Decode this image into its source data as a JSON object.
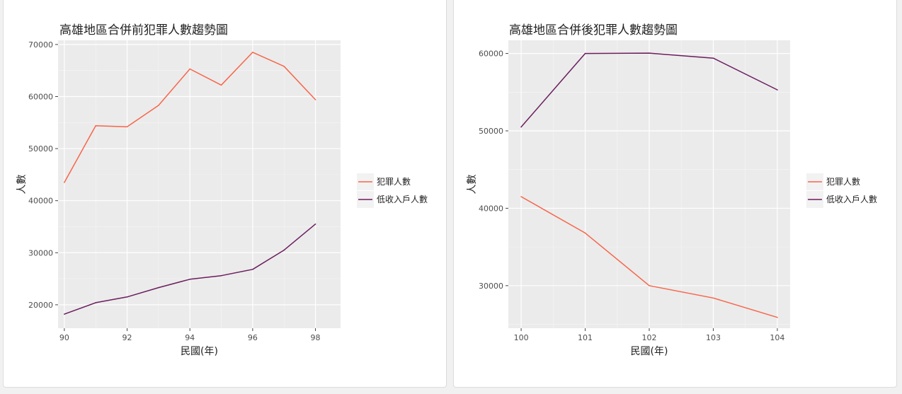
{
  "colors": {
    "panel": "#ebebeb",
    "grid_major": "#ffffff",
    "crime": "#f8654a",
    "lowincome": "#6b1d5e"
  },
  "chart_data": [
    {
      "type": "line",
      "title": "高雄地區合併前犯罪人數趨勢圖",
      "xlabel": "民國(年)",
      "ylabel": "人數",
      "x": [
        90,
        91,
        92,
        93,
        94,
        95,
        96,
        97,
        98
      ],
      "xticks": [
        90,
        92,
        94,
        96,
        98
      ],
      "xlim": [
        89.8,
        98.8
      ],
      "yticks": [
        20000,
        30000,
        40000,
        50000,
        60000,
        70000
      ],
      "ylim": [
        15500,
        70800
      ],
      "series": [
        {
          "name": "犯罪人數",
          "color": "#f8654a",
          "values": [
            43500,
            54400,
            54200,
            58300,
            65300,
            62200,
            68500,
            65800,
            59400
          ]
        },
        {
          "name": "低收入戶人數",
          "color": "#6b1d5e",
          "values": [
            18200,
            20400,
            21500,
            23300,
            24900,
            25600,
            26800,
            30500,
            35500
          ]
        }
      ],
      "grid": true,
      "legend": "right"
    },
    {
      "type": "line",
      "title": "高雄地區合併後犯罪人數趨勢圖",
      "xlabel": "民國(年)",
      "ylabel": "人數",
      "x": [
        100,
        101,
        102,
        103,
        104
      ],
      "xticks": [
        100,
        101,
        102,
        103,
        104
      ],
      "xlim": [
        99.8,
        104.2
      ],
      "yticks": [
        30000,
        40000,
        50000,
        60000
      ],
      "ylim": [
        24500,
        61700
      ],
      "series": [
        {
          "name": "犯罪人數",
          "color": "#f8654a",
          "values": [
            41500,
            36800,
            30000,
            28400,
            25900
          ]
        },
        {
          "name": "低收入戶人數",
          "color": "#6b1d5e",
          "values": [
            50500,
            60000,
            60050,
            59400,
            55300
          ]
        }
      ],
      "grid": true,
      "legend": "right"
    }
  ]
}
